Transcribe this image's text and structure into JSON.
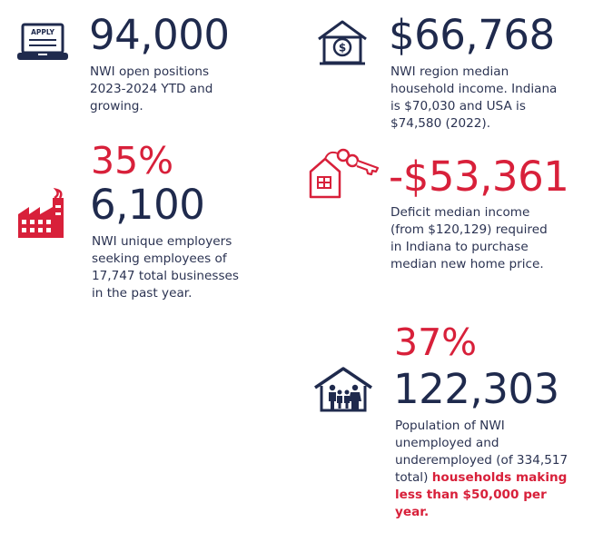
{
  "colors": {
    "navy": "#1f2a4d",
    "red": "#d8203a"
  },
  "stats": {
    "open_positions": {
      "icon": "laptop-apply-icon",
      "icon_label": "APPLY",
      "value": "94,000",
      "description": "NWI open positions 2023-2024 YTD and growing."
    },
    "median_income": {
      "icon": "house-dollar-icon",
      "value": "$66,768",
      "description": "NWI region median household income. Indiana is $70,030 and USA is $74,580 (2022)."
    },
    "employers": {
      "icon": "factory-icon",
      "percent": "35%",
      "value": "6,100",
      "description": "NWI unique employers seeking employees of 17,747 total businesses in the past year."
    },
    "income_deficit": {
      "icon": "house-key-icon",
      "value": "-$53,361",
      "description": "Deficit median income (from $120,129) required in Indiana to purchase median new home price."
    },
    "unemployed": {
      "icon": "house-family-icon",
      "percent": "37%",
      "value": "122,303",
      "description": "Population of NWI unemployed and underemployed (of 334,517 total)",
      "description_highlight": "households making less than $50,000 per year."
    }
  }
}
